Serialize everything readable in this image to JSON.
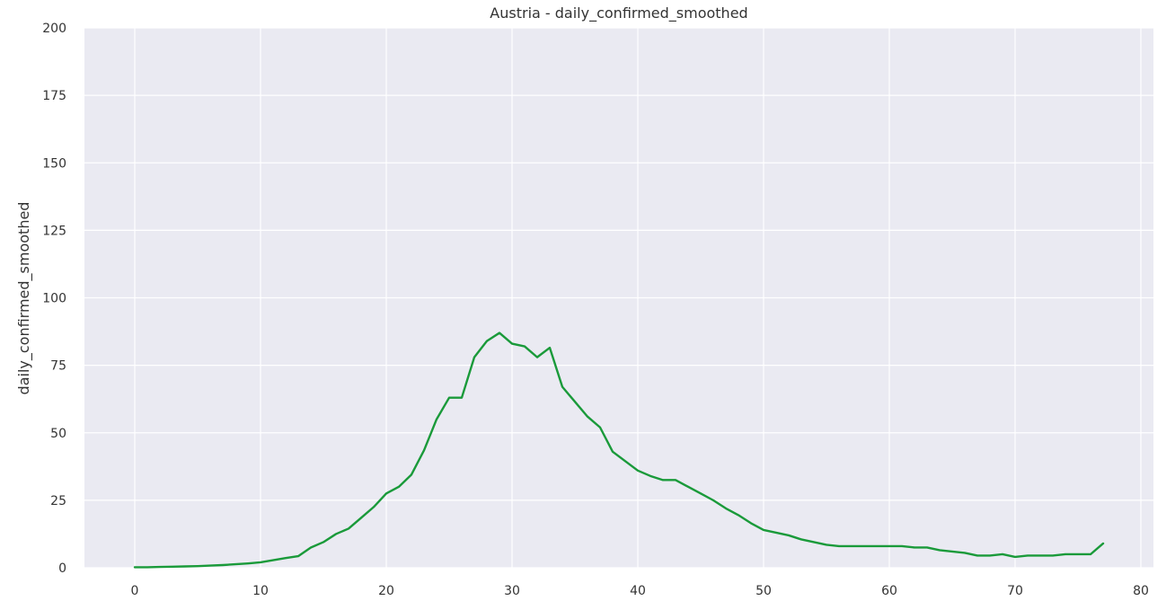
{
  "chart_data": {
    "type": "line",
    "title": "Austria - daily_confirmed_smoothed",
    "xlabel": "",
    "ylabel": "daily_confirmed_smoothed",
    "xlim": [
      -4,
      81
    ],
    "ylim": [
      0,
      200
    ],
    "xticks": [
      0,
      10,
      20,
      30,
      40,
      50,
      60,
      70,
      80
    ],
    "yticks": [
      0,
      25,
      50,
      75,
      100,
      125,
      150,
      175,
      200
    ],
    "grid": true,
    "series": [
      {
        "color": "#1a9a3a",
        "x": [
          0,
          1,
          2,
          3,
          4,
          5,
          6,
          7,
          8,
          9,
          10,
          11,
          12,
          13,
          14,
          15,
          16,
          17,
          18,
          19,
          20,
          21,
          22,
          23,
          24,
          25,
          26,
          27,
          28,
          29,
          30,
          31,
          32,
          33,
          34,
          35,
          36,
          37,
          38,
          39,
          40,
          41,
          42,
          43,
          44,
          45,
          46,
          47,
          48,
          49,
          50,
          51,
          52,
          53,
          54,
          55,
          56,
          57,
          58,
          59,
          60,
          61,
          62,
          63,
          64,
          65,
          66,
          67,
          68,
          69,
          70,
          71,
          72,
          73,
          74,
          75,
          76,
          77
        ],
        "y": [
          0.2,
          0.2,
          0.3,
          0.4,
          0.5,
          0.6,
          0.8,
          1.0,
          1.3,
          1.6,
          2.0,
          2.8,
          3.6,
          4.3,
          7.5,
          9.5,
          12.5,
          14.5,
          18.5,
          22.5,
          27.5,
          30.0,
          34.5,
          43.5,
          55.0,
          63.0,
          63.0,
          78.0,
          84.0,
          87.0,
          83.0,
          82.0,
          78.0,
          81.5,
          67.0,
          61.5,
          56.0,
          52.0,
          43.0,
          39.5,
          36.0,
          34.0,
          32.5,
          32.5,
          30.0,
          27.5,
          25.0,
          22.0,
          19.5,
          16.5,
          14.0,
          13.0,
          12.0,
          10.5,
          9.5,
          8.5,
          8.0,
          8.0,
          8.0,
          8.0,
          8.0,
          8.0,
          7.5,
          7.5,
          6.5,
          6.0,
          5.5,
          4.5,
          4.5,
          5.0,
          4.0,
          4.5,
          4.5,
          4.5,
          5.0,
          5.0,
          5.0,
          9.0
        ]
      }
    ]
  },
  "colors": {
    "plot_bg": "#eaeaf2",
    "grid": "#ffffff",
    "line": "#1a9a3a",
    "text": "#333333"
  }
}
